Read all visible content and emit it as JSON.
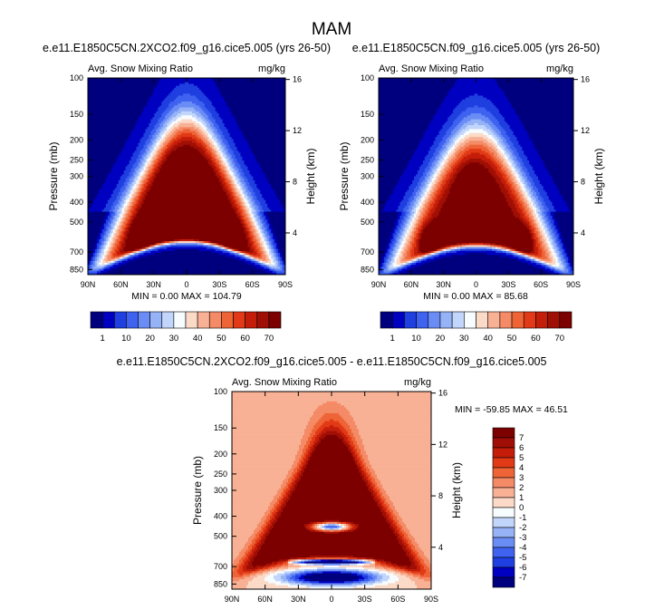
{
  "figure_title": "MAM",
  "chart_data": [
    {
      "type": "heatmap",
      "title": "e.e11.E1850C5CN.2XCO2.f09_g16.cice5.005 (yrs 26-50)",
      "left_string": "Avg. Snow Mixing Ratio",
      "right_string": "mg/kg",
      "ylabel": "Pressure (mb)",
      "ylabel_right": "Height (km)",
      "xticks": [
        "90N",
        "60N",
        "30N",
        "0",
        "30S",
        "60S",
        "90S"
      ],
      "yticks": [
        "100",
        "150",
        "200",
        "250",
        "300",
        "400",
        "500",
        "700",
        "850"
      ],
      "yticks_right": [
        "16",
        "12",
        "8",
        "4"
      ],
      "stats": {
        "min_label": "MIN =",
        "min": "0.00",
        "max_label": "MAX =",
        "max": "104.79"
      },
      "levels": [
        "1",
        "10",
        "20",
        "30",
        "40",
        "50",
        "60",
        "70"
      ],
      "field": "ctrl",
      "colorbar": "horizontal"
    },
    {
      "type": "heatmap",
      "title": "e.e11.E1850C5CN.f09_g16.cice5.005 (yrs 26-50)",
      "left_string": "Avg. Snow Mixing Ratio",
      "right_string": "mg/kg",
      "ylabel": "Pressure (mb)",
      "ylabel_right": "Height (km)",
      "xticks": [
        "90N",
        "60N",
        "30N",
        "0",
        "30S",
        "60S",
        "90S"
      ],
      "yticks": [
        "100",
        "150",
        "200",
        "250",
        "300",
        "400",
        "500",
        "700",
        "850"
      ],
      "yticks_right": [
        "16",
        "12",
        "8",
        "4"
      ],
      "stats": {
        "min_label": "MIN =",
        "min": "0.00",
        "max_label": "MAX =",
        "max": "85.68"
      },
      "levels": [
        "1",
        "10",
        "20",
        "30",
        "40",
        "50",
        "60",
        "70"
      ],
      "field": "base",
      "colorbar": "horizontal"
    },
    {
      "type": "heatmap",
      "title": "e.e11.E1850C5CN.2XCO2.f09_g16.cice5.005 - e.e11.E1850C5CN.f09_g16.cice5.005",
      "left_string": "Avg. Snow Mixing Ratio",
      "right_string": "mg/kg",
      "ylabel": "Pressure (mb)",
      "ylabel_right": "Height (km)",
      "xticks": [
        "90N",
        "60N",
        "30N",
        "0",
        "30S",
        "60S",
        "90S"
      ],
      "yticks": [
        "100",
        "150",
        "200",
        "250",
        "300",
        "400",
        "500",
        "700",
        "850"
      ],
      "yticks_right": [
        "16",
        "12",
        "8",
        "4"
      ],
      "stats": {
        "min_label": "MIN =",
        "min": "-59.85",
        "max_label": "MAX =",
        "max": "46.51"
      },
      "levels": [
        "7",
        "6",
        "5",
        "4",
        "3",
        "2",
        "1",
        "0",
        "-1",
        "-2",
        "-3",
        "-4",
        "-5",
        "-6",
        "-7"
      ],
      "field": "diff",
      "colorbar": "vertical"
    }
  ],
  "colors": {
    "abs_bins": [
      "#00007f",
      "#0000c0",
      "#1f3fe0",
      "#3f62f0",
      "#6a8cf5",
      "#96b3f7",
      "#c2d5fb",
      "#f7fcff",
      "#fbdac8",
      "#f8b195",
      "#f48a66",
      "#ee6437",
      "#e23a17",
      "#c41e0a",
      "#a00f05",
      "#7c0000"
    ],
    "diff_bins": [
      "#7c0000",
      "#a00f05",
      "#c41e0a",
      "#e23a17",
      "#ee6437",
      "#f48a66",
      "#f8b195",
      "#fbdac8",
      "#f7fcff",
      "#c2d5fb",
      "#96b3f7",
      "#6a8cf5",
      "#3f62f0",
      "#1f3fe0",
      "#0000c0",
      "#00007f"
    ]
  }
}
